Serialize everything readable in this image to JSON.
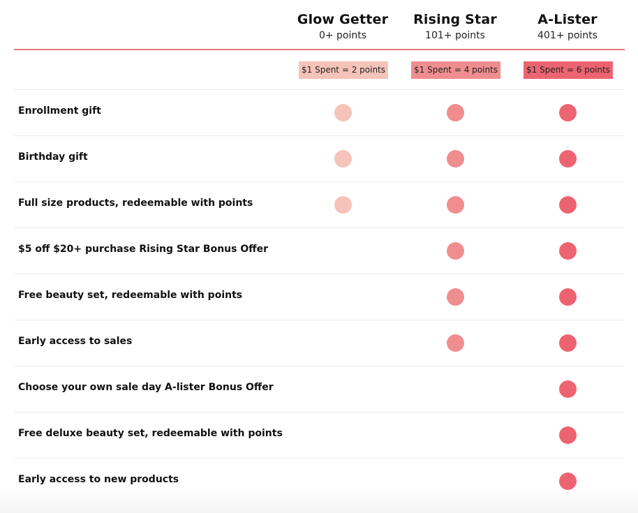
{
  "colors": {
    "header_line": "#e8777d",
    "tier1": "#f5c3b9",
    "tier2": "#f08d8f",
    "tier3": "#ec6470"
  },
  "tiers": [
    {
      "name": "Glow Getter",
      "points": "0+ points",
      "rate": "$1 Spent = 2 points"
    },
    {
      "name": "Rising Star",
      "points": "101+ points",
      "rate": "$1 Spent = 4 points"
    },
    {
      "name": "A-Lister",
      "points": "401+ points",
      "rate": "$1 Spent = 6 points"
    }
  ],
  "benefits": [
    {
      "label": "Enrollment gift",
      "tiers": [
        true,
        true,
        true
      ]
    },
    {
      "label": "Birthday gift",
      "tiers": [
        true,
        true,
        true
      ]
    },
    {
      "label": "Full size products, redeemable with points",
      "tiers": [
        true,
        true,
        true
      ]
    },
    {
      "label": "$5 off $20+ purchase Rising Star Bonus Offer",
      "tiers": [
        false,
        true,
        true
      ]
    },
    {
      "label": "Free beauty set, redeemable with points",
      "tiers": [
        false,
        true,
        true
      ]
    },
    {
      "label": "Early access to sales",
      "tiers": [
        false,
        true,
        true
      ]
    },
    {
      "label": "Choose your own sale day A-lister Bonus Offer",
      "tiers": [
        false,
        false,
        true
      ]
    },
    {
      "label": "Free deluxe beauty set, redeemable with points",
      "tiers": [
        false,
        false,
        true
      ]
    },
    {
      "label": "Early access to new products",
      "tiers": [
        false,
        false,
        true
      ]
    }
  ]
}
